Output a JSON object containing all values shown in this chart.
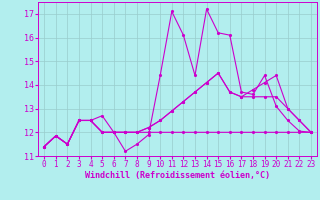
{
  "xlabel": "Windchill (Refroidissement éolien,°C)",
  "bg_color": "#b2eeee",
  "line_color": "#cc00cc",
  "grid_color": "#99cccc",
  "xlim": [
    -0.5,
    23.5
  ],
  "ylim": [
    11,
    17.5
  ],
  "yticks": [
    11,
    12,
    13,
    14,
    15,
    16,
    17
  ],
  "xticks": [
    0,
    1,
    2,
    3,
    4,
    5,
    6,
    7,
    8,
    9,
    10,
    11,
    12,
    13,
    14,
    15,
    16,
    17,
    18,
    19,
    20,
    21,
    22,
    23
  ],
  "series": [
    [
      11.4,
      11.85,
      11.5,
      12.5,
      12.5,
      12.7,
      12.0,
      11.2,
      11.5,
      11.9,
      14.4,
      17.1,
      16.1,
      14.4,
      17.2,
      16.2,
      16.1,
      13.7,
      13.6,
      14.4,
      13.1,
      12.5,
      12.05,
      12.0
    ],
    [
      11.4,
      11.85,
      11.5,
      12.5,
      12.5,
      12.0,
      12.0,
      12.0,
      12.0,
      12.0,
      12.0,
      12.0,
      12.0,
      12.0,
      12.0,
      12.0,
      12.0,
      12.0,
      12.0,
      12.0,
      12.0,
      12.0,
      12.0,
      12.0
    ],
    [
      11.4,
      11.85,
      11.5,
      12.5,
      12.5,
      12.0,
      12.0,
      12.0,
      12.0,
      12.2,
      12.5,
      12.9,
      13.3,
      13.7,
      14.1,
      14.5,
      13.7,
      13.5,
      13.8,
      14.1,
      14.4,
      13.0,
      12.5,
      12.0
    ],
    [
      11.4,
      11.85,
      11.5,
      12.5,
      12.5,
      12.0,
      12.0,
      12.0,
      12.0,
      12.2,
      12.5,
      12.9,
      13.3,
      13.7,
      14.1,
      14.5,
      13.7,
      13.5,
      13.5,
      13.5,
      13.5,
      13.0,
      12.5,
      12.0
    ]
  ]
}
